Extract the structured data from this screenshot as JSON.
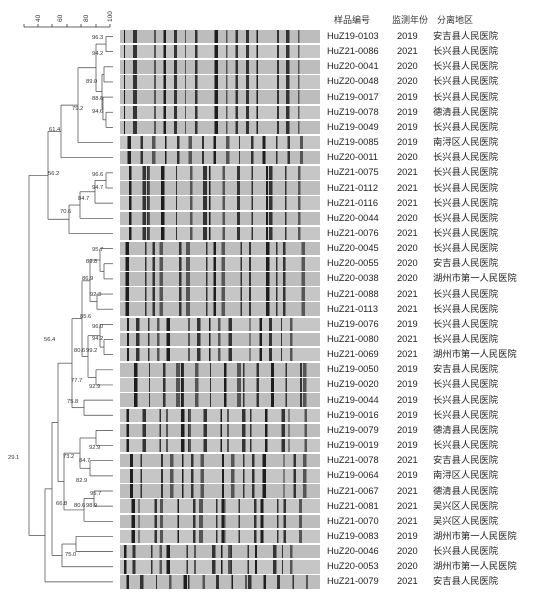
{
  "headers": {
    "sample_id": "样品编号",
    "year": "监测年份",
    "site": "分离地区"
  },
  "scale_ticks": [
    "40",
    "60",
    "80",
    "100"
  ],
  "samples": [
    {
      "id": "HuZ19-0103",
      "year": "2019",
      "site": "安吉县人民医院"
    },
    {
      "id": "HuZ21-0086",
      "year": "2021",
      "site": "长兴县人民医院"
    },
    {
      "id": "HuZ20-0041",
      "year": "2020",
      "site": "长兴县人民医院"
    },
    {
      "id": "HuZ20-0048",
      "year": "2020",
      "site": "长兴县人民医院"
    },
    {
      "id": "HuZ19-0017",
      "year": "2019",
      "site": "长兴县人民医院"
    },
    {
      "id": "HuZ19-0078",
      "year": "2019",
      "site": "德清县人民医院"
    },
    {
      "id": "HuZ19-0049",
      "year": "2019",
      "site": "长兴县人民医院"
    },
    {
      "id": "HuZ19-0085",
      "year": "2019",
      "site": "南浔区人民医院"
    },
    {
      "id": "HuZ20-0011",
      "year": "2020",
      "site": "长兴县人民医院"
    },
    {
      "id": "HuZ21-0075",
      "year": "2021",
      "site": "长兴县人民医院"
    },
    {
      "id": "HuZ21-0112",
      "year": "2021",
      "site": "长兴县人民医院"
    },
    {
      "id": "HuZ21-0116",
      "year": "2021",
      "site": "长兴县人民医院"
    },
    {
      "id": "HuZ20-0044",
      "year": "2020",
      "site": "长兴县人民医院"
    },
    {
      "id": "HuZ21-0076",
      "year": "2021",
      "site": "长兴县人民医院"
    },
    {
      "id": "HuZ20-0045",
      "year": "2020",
      "site": "长兴县人民医院"
    },
    {
      "id": "HuZ20-0055",
      "year": "2020",
      "site": "安吉县人民医院"
    },
    {
      "id": "HuZ20-0038",
      "year": "2020",
      "site": "湖州市第一人民医院"
    },
    {
      "id": "HuZ21-0088",
      "year": "2021",
      "site": "长兴县人民医院"
    },
    {
      "id": "HuZ21-0113",
      "year": "2021",
      "site": "长兴县人民医院"
    },
    {
      "id": "HuZ19-0076",
      "year": "2019",
      "site": "长兴县人民医院"
    },
    {
      "id": "HuZ21-0080",
      "year": "2021",
      "site": "长兴县人民医院"
    },
    {
      "id": "HuZ21-0069",
      "year": "2021",
      "site": "湖州市第一人民医院"
    },
    {
      "id": "HuZ19-0050",
      "year": "2019",
      "site": "安吉县人民医院"
    },
    {
      "id": "HuZ19-0020",
      "year": "2019",
      "site": "长兴县人民医院"
    },
    {
      "id": "HuZ19-0044",
      "year": "2019",
      "site": "长兴县人民医院"
    },
    {
      "id": "HuZ19-0016",
      "year": "2019",
      "site": "长兴县人民医院"
    },
    {
      "id": "HuZ19-0079",
      "year": "2019",
      "site": "德清县人民医院"
    },
    {
      "id": "HuZ19-0019",
      "year": "2019",
      "site": "长兴县人民医院"
    },
    {
      "id": "HuZ21-0078",
      "year": "2021",
      "site": "安吉县人民医院"
    },
    {
      "id": "HuZ19-0064",
      "year": "2019",
      "site": "南浔区人民医院"
    },
    {
      "id": "HuZ21-0067",
      "year": "2021",
      "site": "德清县人民医院"
    },
    {
      "id": "HuZ21-0081",
      "year": "2021",
      "site": "吴兴区人民医院"
    },
    {
      "id": "HuZ21-0070",
      "year": "2021",
      "site": "吴兴区人民医院"
    },
    {
      "id": "HuZ19-0083",
      "year": "2019",
      "site": "湖州市第一人民医院"
    },
    {
      "id": "HuZ20-0046",
      "year": "2020",
      "site": "长兴县人民医院"
    },
    {
      "id": "HuZ20-0053",
      "year": "2020",
      "site": "湖州市第一人民医院"
    },
    {
      "id": "HuZ21-0079",
      "year": "2021",
      "site": "安吉县人民医院"
    }
  ],
  "node_labels": [
    "96.3",
    "94.2",
    "89.0",
    "88.6",
    "94.6",
    "79.2",
    "61.4",
    "96.6",
    "94.7",
    "84.7",
    "70.6",
    "56.2",
    "95.7",
    "89.8",
    "86.9",
    "92.3",
    "85.6",
    "96.0",
    "94.2",
    "80.6",
    "99.2",
    "77.7",
    "92.9",
    "75.8",
    "56.4",
    "92.9",
    "84.7",
    "82.9",
    "73.2",
    "95.7",
    "80.6",
    "98.9",
    "66.8",
    "75.0",
    "29.1"
  ]
}
